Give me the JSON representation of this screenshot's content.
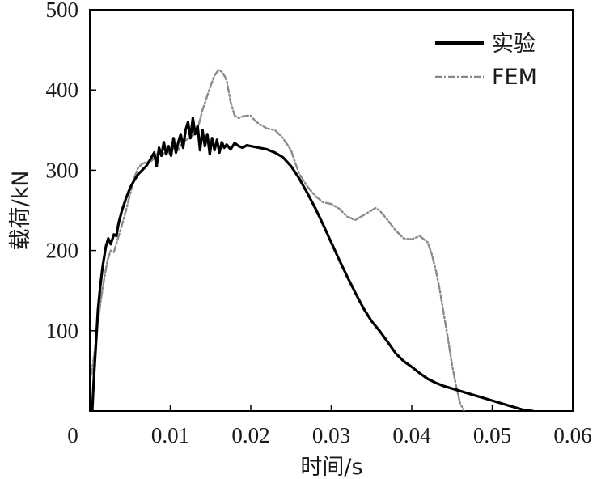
{
  "chart_data": {
    "type": "line",
    "xlabel": "时间/s",
    "ylabel": "载荷/kN",
    "xlim": [
      0,
      0.06
    ],
    "ylim": [
      0,
      500
    ],
    "x_ticks": [
      {
        "value": 0,
        "label": "0"
      },
      {
        "value": 0.01,
        "label": "0.01"
      },
      {
        "value": 0.02,
        "label": "0.02"
      },
      {
        "value": 0.03,
        "label": "0.03"
      },
      {
        "value": 0.04,
        "label": "0.04"
      },
      {
        "value": 0.05,
        "label": "0.05"
      },
      {
        "value": 0.06,
        "label": "0.06"
      }
    ],
    "y_ticks": [
      {
        "value": 100,
        "label": "100"
      },
      {
        "value": 200,
        "label": "200"
      },
      {
        "value": 300,
        "label": "300"
      },
      {
        "value": 400,
        "label": "400"
      },
      {
        "value": 500,
        "label": "500"
      }
    ],
    "grid": false,
    "legend_position": "top-right",
    "series": [
      {
        "name": "实验",
        "style": "solid",
        "color": "#000000",
        "x": [
          0.0003,
          0.0005,
          0.0008,
          0.001,
          0.0013,
          0.0016,
          0.002,
          0.0023,
          0.0026,
          0.003,
          0.0033,
          0.0036,
          0.004,
          0.0045,
          0.005,
          0.0055,
          0.006,
          0.0065,
          0.007,
          0.0075,
          0.008,
          0.0083,
          0.0086,
          0.0089,
          0.0092,
          0.0095,
          0.0098,
          0.0101,
          0.0104,
          0.0107,
          0.011,
          0.0113,
          0.0116,
          0.0119,
          0.0122,
          0.0125,
          0.0128,
          0.0131,
          0.0134,
          0.0137,
          0.014,
          0.0143,
          0.0146,
          0.0149,
          0.0152,
          0.0155,
          0.0158,
          0.0161,
          0.0164,
          0.0167,
          0.017,
          0.0175,
          0.018,
          0.0185,
          0.019,
          0.0195,
          0.02,
          0.021,
          0.022,
          0.023,
          0.024,
          0.025,
          0.026,
          0.027,
          0.028,
          0.029,
          0.03,
          0.031,
          0.032,
          0.033,
          0.034,
          0.035,
          0.036,
          0.037,
          0.038,
          0.039,
          0.04,
          0.041,
          0.042,
          0.043,
          0.044,
          0.045,
          0.046,
          0.047,
          0.048,
          0.049,
          0.05,
          0.051,
          0.052,
          0.053,
          0.054,
          0.055
        ],
        "values": [
          0,
          40,
          90,
          125,
          155,
          180,
          205,
          215,
          208,
          220,
          218,
          235,
          250,
          265,
          278,
          287,
          295,
          300,
          305,
          313,
          322,
          305,
          328,
          318,
          335,
          320,
          330,
          318,
          340,
          322,
          335,
          345,
          328,
          350,
          360,
          340,
          365,
          345,
          355,
          325,
          350,
          330,
          345,
          320,
          340,
          325,
          338,
          322,
          335,
          328,
          332,
          326,
          334,
          330,
          328,
          331,
          330,
          328,
          326,
          322,
          316,
          305,
          290,
          272,
          253,
          232,
          210,
          188,
          167,
          147,
          128,
          112,
          100,
          86,
          72,
          62,
          55,
          47,
          40,
          35,
          31,
          28,
          25,
          22,
          19,
          16,
          13,
          10,
          7,
          4,
          1,
          0
        ]
      },
      {
        "name": "FEM",
        "style": "dash-dot",
        "color": "#888888",
        "x": [
          0.0002,
          0.0006,
          0.001,
          0.0014,
          0.0018,
          0.0022,
          0.0026,
          0.003,
          0.0035,
          0.004,
          0.0045,
          0.005,
          0.0055,
          0.006,
          0.0065,
          0.007,
          0.0075,
          0.008,
          0.0085,
          0.009,
          0.0095,
          0.01,
          0.0105,
          0.011,
          0.0115,
          0.012,
          0.0125,
          0.013,
          0.0135,
          0.014,
          0.0145,
          0.015,
          0.0155,
          0.016,
          0.0165,
          0.017,
          0.0175,
          0.018,
          0.0185,
          0.019,
          0.0195,
          0.02,
          0.0205,
          0.021,
          0.022,
          0.023,
          0.024,
          0.025,
          0.0255,
          0.026,
          0.027,
          0.028,
          0.029,
          0.03,
          0.031,
          0.032,
          0.033,
          0.034,
          0.035,
          0.0355,
          0.036,
          0.037,
          0.038,
          0.039,
          0.04,
          0.041,
          0.042,
          0.0425,
          0.043,
          0.0435,
          0.044,
          0.0445,
          0.045,
          0.0455,
          0.046,
          0.0465,
          0.047
        ],
        "values": [
          45,
          75,
          110,
          140,
          165,
          188,
          200,
          198,
          215,
          232,
          250,
          270,
          290,
          303,
          308,
          310,
          310,
          315,
          322,
          318,
          325,
          320,
          330,
          325,
          335,
          338,
          340,
          345,
          355,
          375,
          390,
          405,
          418,
          425,
          422,
          412,
          385,
          368,
          365,
          367,
          368,
          368,
          362,
          358,
          352,
          350,
          340,
          325,
          310,
          296,
          280,
          268,
          260,
          258,
          252,
          242,
          238,
          244,
          250,
          253,
          250,
          238,
          225,
          215,
          214,
          218,
          210,
          195,
          175,
          150,
          120,
          90,
          58,
          32,
          10,
          0,
          -8
        ]
      }
    ]
  }
}
